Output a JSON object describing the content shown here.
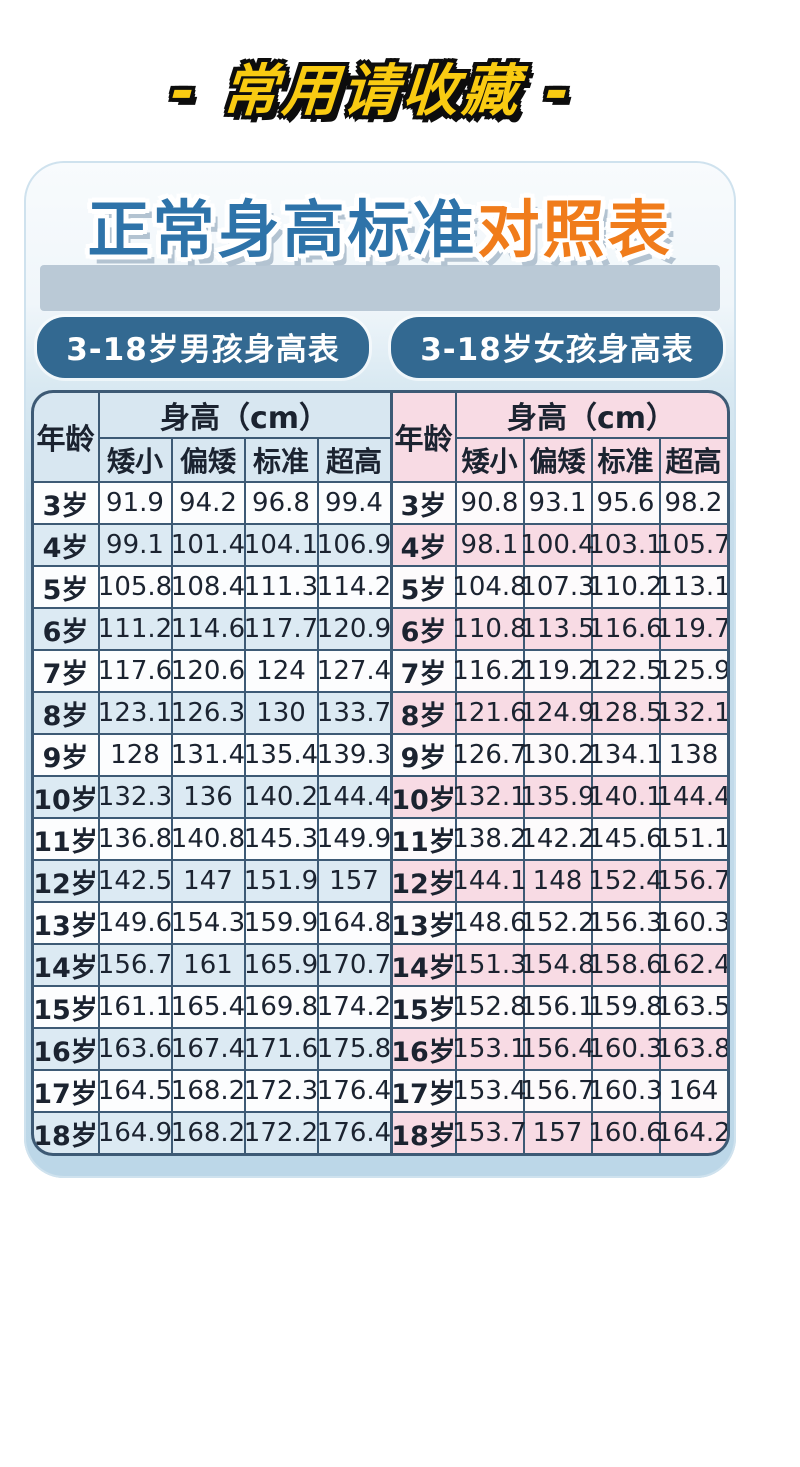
{
  "banner": {
    "text": "- 常用请收藏 -"
  },
  "title": {
    "main": "正常身高标准",
    "accent": "对照表"
  },
  "colors": {
    "banner_yellow": "#f9cb12",
    "title_blue": "#2e73a9",
    "title_orange": "#f07c1b",
    "pill_blue": "#336991",
    "card_blue": "#bcd7e8",
    "boys_row_blue": "#dceaf3",
    "girls_row_pink": "#f8dbe4",
    "table_border": "#3d5a75"
  },
  "chart_data": [
    {
      "type": "table",
      "title": "3-18岁男孩身高表",
      "age_header": "年龄",
      "unit_header": "身高（cm）",
      "columns": [
        "矮小",
        "偏矮",
        "标准",
        "超高"
      ],
      "rows": [
        [
          "3岁",
          91.9,
          94.2,
          96.8,
          99.4
        ],
        [
          "4岁",
          99.1,
          101.4,
          104.1,
          106.9
        ],
        [
          "5岁",
          105.8,
          108.4,
          111.3,
          114.2
        ],
        [
          "6岁",
          111.2,
          114.6,
          117.7,
          120.9
        ],
        [
          "7岁",
          117.6,
          120.6,
          124,
          127.4
        ],
        [
          "8岁",
          123.1,
          126.3,
          130,
          133.7
        ],
        [
          "9岁",
          128,
          131.4,
          135.4,
          139.3
        ],
        [
          "10岁",
          132.3,
          136,
          140.2,
          144.4
        ],
        [
          "11岁",
          136.8,
          140.8,
          145.3,
          149.9
        ],
        [
          "12岁",
          142.5,
          147,
          151.9,
          157
        ],
        [
          "13岁",
          149.6,
          154.3,
          159.9,
          164.8
        ],
        [
          "14岁",
          156.7,
          161,
          165.9,
          170.7
        ],
        [
          "15岁",
          161.1,
          165.4,
          169.8,
          174.2
        ],
        [
          "16岁",
          163.6,
          167.4,
          171.6,
          175.8
        ],
        [
          "17岁",
          164.5,
          168.2,
          172.3,
          176.4
        ],
        [
          "18岁",
          164.9,
          168.2,
          172.2,
          176.4
        ]
      ]
    },
    {
      "type": "table",
      "title": "3-18岁女孩身高表",
      "age_header": "年龄",
      "unit_header": "身高（cm）",
      "columns": [
        "矮小",
        "偏矮",
        "标准",
        "超高"
      ],
      "rows": [
        [
          "3岁",
          90.8,
          93.1,
          95.6,
          98.2
        ],
        [
          "4岁",
          98.1,
          100.4,
          103.1,
          105.7
        ],
        [
          "5岁",
          104.8,
          107.3,
          110.2,
          113.1
        ],
        [
          "6岁",
          110.8,
          113.5,
          116.6,
          119.7
        ],
        [
          "7岁",
          116.2,
          119.2,
          122.5,
          125.9
        ],
        [
          "8岁",
          121.6,
          124.9,
          128.5,
          132.1
        ],
        [
          "9岁",
          126.7,
          130.2,
          134.1,
          138
        ],
        [
          "10岁",
          132.1,
          135.9,
          140.1,
          144.4
        ],
        [
          "11岁",
          138.2,
          142.2,
          145.6,
          151.1
        ],
        [
          "12岁",
          144.1,
          148,
          152.4,
          156.7
        ],
        [
          "13岁",
          148.6,
          152.2,
          156.3,
          160.3
        ],
        [
          "14岁",
          151.3,
          154.8,
          158.6,
          162.4
        ],
        [
          "15岁",
          152.8,
          156.1,
          159.8,
          163.5
        ],
        [
          "16岁",
          153.1,
          156.4,
          160.3,
          163.8
        ],
        [
          "17岁",
          153.4,
          156.7,
          160.3,
          164
        ],
        [
          "18岁",
          153.7,
          157,
          160.6,
          164.2
        ]
      ]
    }
  ]
}
